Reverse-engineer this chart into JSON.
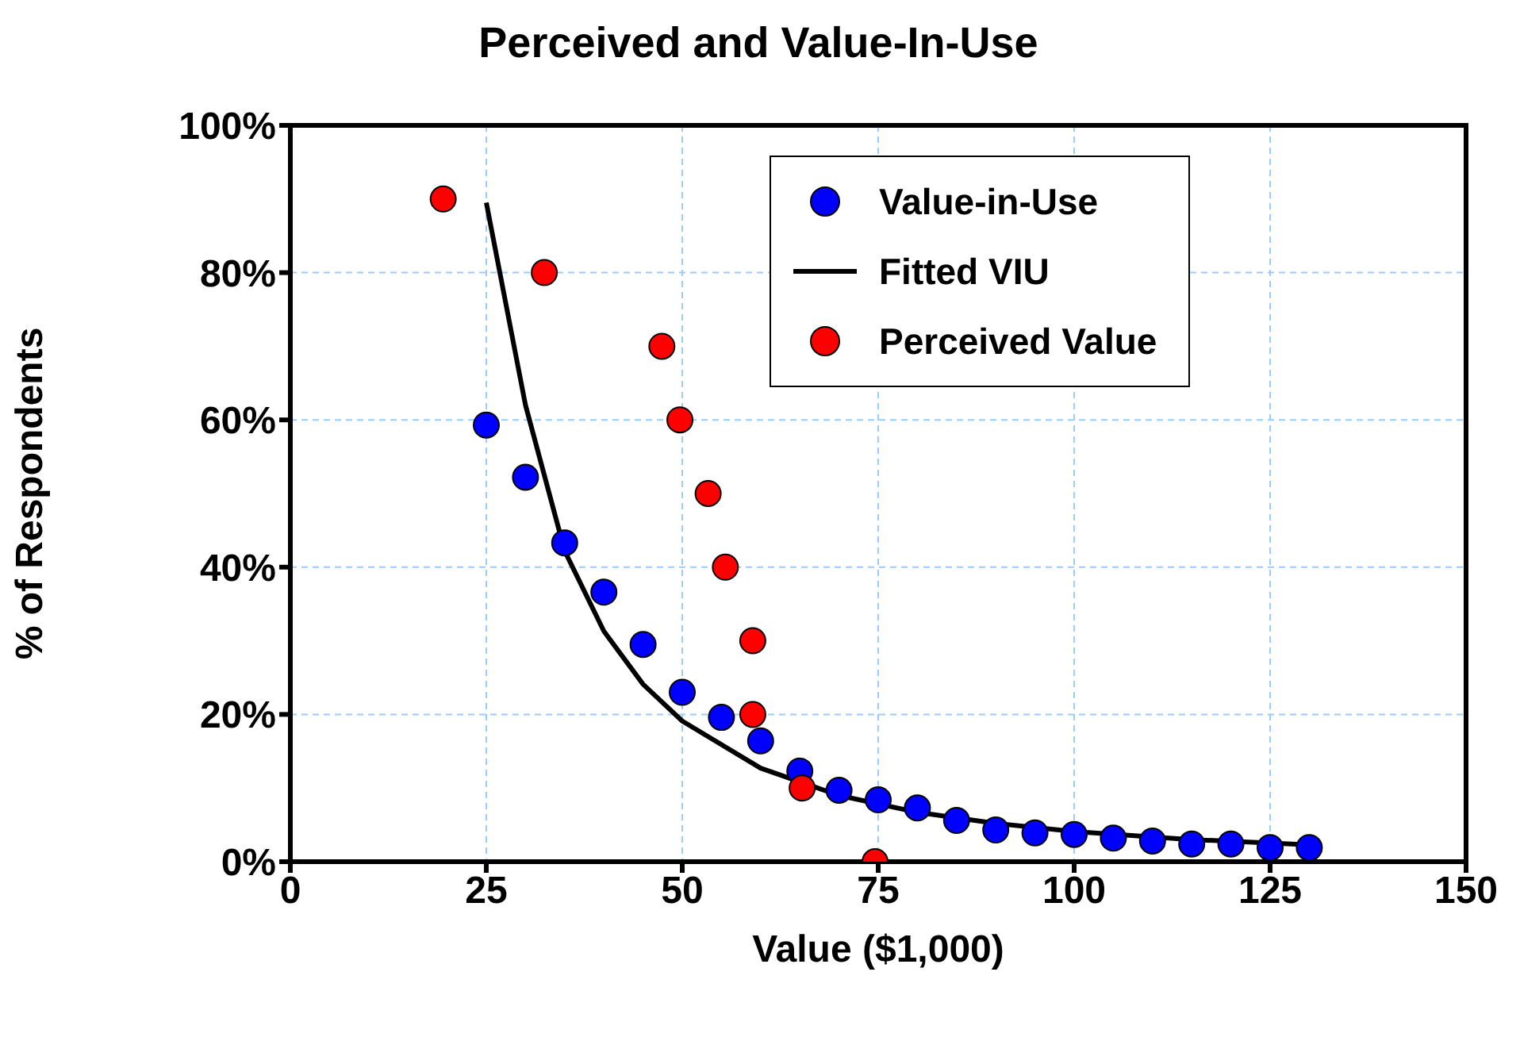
{
  "chart_data": {
    "type": "scatter",
    "title": "Perceived and Value-In-Use",
    "xlabel": "Value ($1,000)",
    "ylabel": "% of Respondents",
    "xlim": [
      0,
      150
    ],
    "xticks": [
      0,
      25,
      50,
      75,
      100,
      125,
      150
    ],
    "ylim": [
      0,
      100
    ],
    "yticks": [
      {
        "value": 0,
        "label": "0%"
      },
      {
        "value": 20,
        "label": "20%"
      },
      {
        "value": 40,
        "label": "40%"
      },
      {
        "value": 60,
        "label": "60%"
      },
      {
        "value": 80,
        "label": "80%"
      },
      {
        "value": 100,
        "label": "100%"
      }
    ],
    "grid": true,
    "legend": "top right",
    "series": [
      {
        "name": "Value-in-Use",
        "type": "scatter",
        "marker": "circle",
        "color": "#0000ff",
        "x": [
          25,
          30,
          35,
          40,
          45,
          50,
          55,
          60,
          65,
          70,
          75,
          80,
          85,
          90,
          95,
          100,
          105,
          110,
          115,
          120,
          125,
          130
        ],
        "values": [
          59.3,
          52.2,
          43.3,
          36.6,
          29.5,
          23,
          19.6,
          16.4,
          12.3,
          9.7,
          8.4,
          7.3,
          5.6,
          4.3,
          3.9,
          3.7,
          3.2,
          2.8,
          2.4,
          2.4,
          1.9,
          1.9
        ]
      },
      {
        "name": "Fitted VIU",
        "type": "line",
        "marker": "none",
        "line_style": "solid",
        "color": "#000000",
        "x": [
          25,
          30,
          35,
          40,
          45,
          50,
          60,
          70,
          80,
          90,
          100,
          115,
          130
        ],
        "values": [
          89.5,
          62,
          42.2,
          31.3,
          24.1,
          19.1,
          12.7,
          9,
          6.7,
          5.2,
          4.1,
          3,
          2.3
        ]
      },
      {
        "name": "Perceived Value",
        "marker": "circle",
        "color": "#ff0000",
        "x": [
          19.5,
          32.4,
          47.4,
          49.7,
          53.3,
          55.5,
          59,
          59,
          65.3,
          74.6
        ],
        "values": [
          90,
          80,
          70,
          60,
          50,
          40,
          30,
          20,
          10,
          0
        ]
      }
    ]
  }
}
